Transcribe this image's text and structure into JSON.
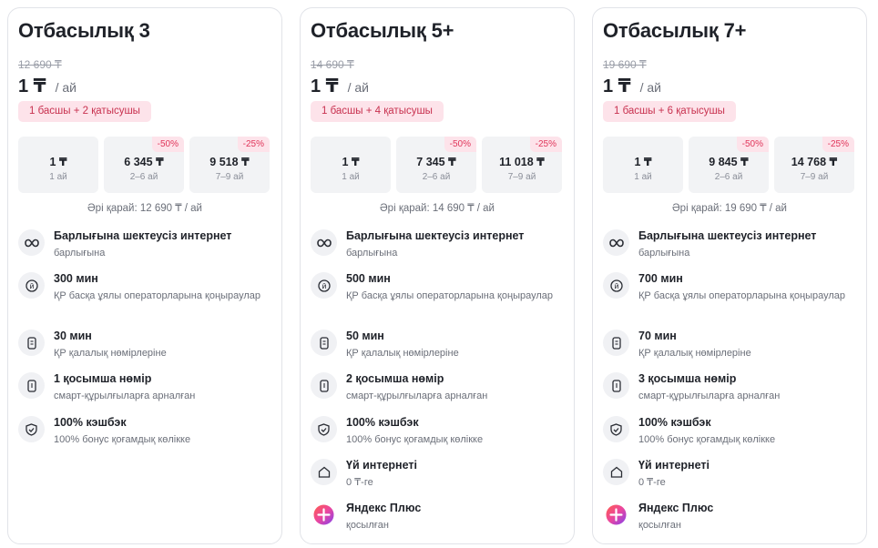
{
  "plans": [
    {
      "title": "Отбасылық 3",
      "old_price": "12 690 ₸",
      "price": "1 ₸",
      "per": "/ ай",
      "members": "1 басшы + 2 қатысушы",
      "periods": [
        {
          "price": "1 ₸",
          "label": "1 ай",
          "discount": ""
        },
        {
          "price": "6 345 ₸",
          "label": "2–6 ай",
          "discount": "-50%"
        },
        {
          "price": "9 518 ₸",
          "label": "7–9 ай",
          "discount": "-25%"
        }
      ],
      "after": "Әрі қарай: 12 690 ₸ / ай",
      "features": [
        {
          "icon": "infinity-icon",
          "title": "Барлығына шектеусіз интернет",
          "sub": "барлығына"
        },
        {
          "icon": "phone-call-icon",
          "title": "300 мин",
          "sub": "ҚР басқа ұялы операторларына қоңыраулар"
        },
        {
          "icon": "smartphone-icon",
          "title": "30 мин",
          "sub": "ҚР қалалық нөмірлеріне"
        },
        {
          "icon": "smart-device-icon",
          "title": "1 қосымша нөмір",
          "sub": "смарт-құрылғыларға арналған"
        },
        {
          "icon": "shield-check-icon",
          "title": "100% кэшбэк",
          "sub": "100% бонус қоғамдық көлікке"
        }
      ]
    },
    {
      "title": "Отбасылық 5+",
      "old_price": "14 690 ₸",
      "price": "1 ₸",
      "per": "/ ай",
      "members": "1 басшы + 4 қатысушы",
      "periods": [
        {
          "price": "1 ₸",
          "label": "1 ай",
          "discount": ""
        },
        {
          "price": "7 345 ₸",
          "label": "2–6 ай",
          "discount": "-50%"
        },
        {
          "price": "11 018 ₸",
          "label": "7–9 ай",
          "discount": "-25%"
        }
      ],
      "after": "Әрі қарай: 14 690 ₸ / ай",
      "features": [
        {
          "icon": "infinity-icon",
          "title": "Барлығына шектеусіз интернет",
          "sub": "барлығына"
        },
        {
          "icon": "phone-call-icon",
          "title": "500 мин",
          "sub": "ҚР басқа ұялы операторларына қоңыраулар"
        },
        {
          "icon": "smartphone-icon",
          "title": "50 мин",
          "sub": "ҚР қалалық нөмірлеріне"
        },
        {
          "icon": "smart-device-icon",
          "title": "2 қосымша нөмір",
          "sub": "смарт-құрылғыларға арналған"
        },
        {
          "icon": "shield-check-icon",
          "title": "100% кэшбэк",
          "sub": "100% бонус қоғамдық көлікке"
        },
        {
          "icon": "home-icon",
          "title": "Үй интернеті",
          "sub": "0 ₸-ге"
        },
        {
          "icon": "yandex-plus-icon",
          "title": "Яндекс Плюс",
          "sub": "қосылған"
        }
      ]
    },
    {
      "title": "Отбасылық 7+",
      "old_price": "19 690 ₸",
      "price": "1 ₸",
      "per": "/ ай",
      "members": "1 басшы + 6 қатысушы",
      "periods": [
        {
          "price": "1 ₸",
          "label": "1 ай",
          "discount": ""
        },
        {
          "price": "9 845 ₸",
          "label": "2–6 ай",
          "discount": "-50%"
        },
        {
          "price": "14 768 ₸",
          "label": "7–9 ай",
          "discount": "-25%"
        }
      ],
      "after": "Әрі қарай: 19 690 ₸ / ай",
      "features": [
        {
          "icon": "infinity-icon",
          "title": "Барлығына шектеусіз интернет",
          "sub": "барлығына"
        },
        {
          "icon": "phone-call-icon",
          "title": "700 мин",
          "sub": "ҚР басқа ұялы операторларына қоңыраулар"
        },
        {
          "icon": "smartphone-icon",
          "title": "70 мин",
          "sub": "ҚР қалалық нөмірлеріне"
        },
        {
          "icon": "smart-device-icon",
          "title": "3 қосымша нөмір",
          "sub": "смарт-құрылғыларға арналған"
        },
        {
          "icon": "shield-check-icon",
          "title": "100% кэшбэк",
          "sub": "100% бонус қоғамдық көлікке"
        },
        {
          "icon": "home-icon",
          "title": "Үй интернеті",
          "sub": "0 ₸-ге"
        },
        {
          "icon": "yandex-plus-icon",
          "title": "Яндекс Плюс",
          "sub": "қосылған"
        }
      ]
    }
  ],
  "colors": {
    "accent": "#e0355a",
    "badge_bg": "#fde3ea",
    "tile_bg": "#f2f3f5"
  }
}
